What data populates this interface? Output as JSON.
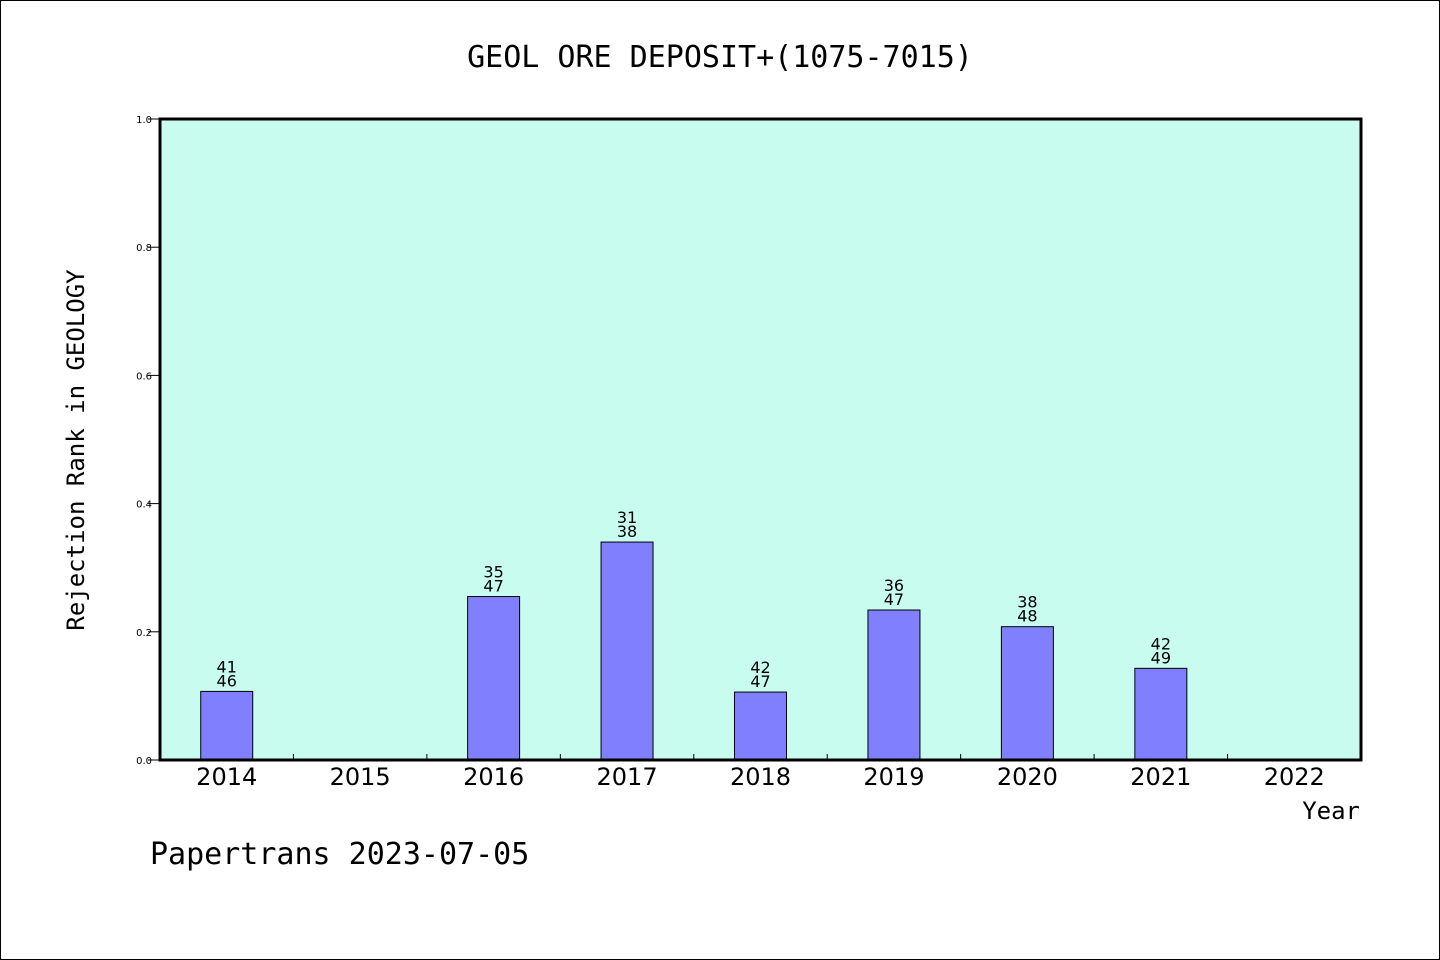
{
  "chart_data": {
    "type": "bar",
    "title": "GEOL ORE DEPOSIT+(1075-7015)",
    "xlabel": "Year",
    "ylabel": "Rejection Rank in GEOLOGY",
    "ylim": [
      0,
      1.0
    ],
    "yticks": [
      "0.0",
      "0.2",
      "0.4",
      "0.6",
      "0.8",
      "1.0"
    ],
    "categories": [
      "2014",
      "2015",
      "2016",
      "2017",
      "2018",
      "2019",
      "2020",
      "2021",
      "2022"
    ],
    "values": [
      0.107,
      null,
      0.255,
      0.34,
      0.106,
      0.234,
      0.208,
      0.143,
      null
    ],
    "bar_labels": [
      [
        "41",
        "46"
      ],
      null,
      [
        "35",
        "47"
      ],
      [
        "31",
        "38"
      ],
      [
        "42",
        "47"
      ],
      [
        "36",
        "47"
      ],
      [
        "38",
        "48"
      ],
      [
        "42",
        "49"
      ],
      null
    ],
    "grid": false,
    "colors": {
      "plot_background": "#c8fcee",
      "bar_fill": "#8080ff",
      "bar_stroke": "#000000"
    }
  },
  "footer": {
    "text": "Papertrans 2023-07-05"
  }
}
